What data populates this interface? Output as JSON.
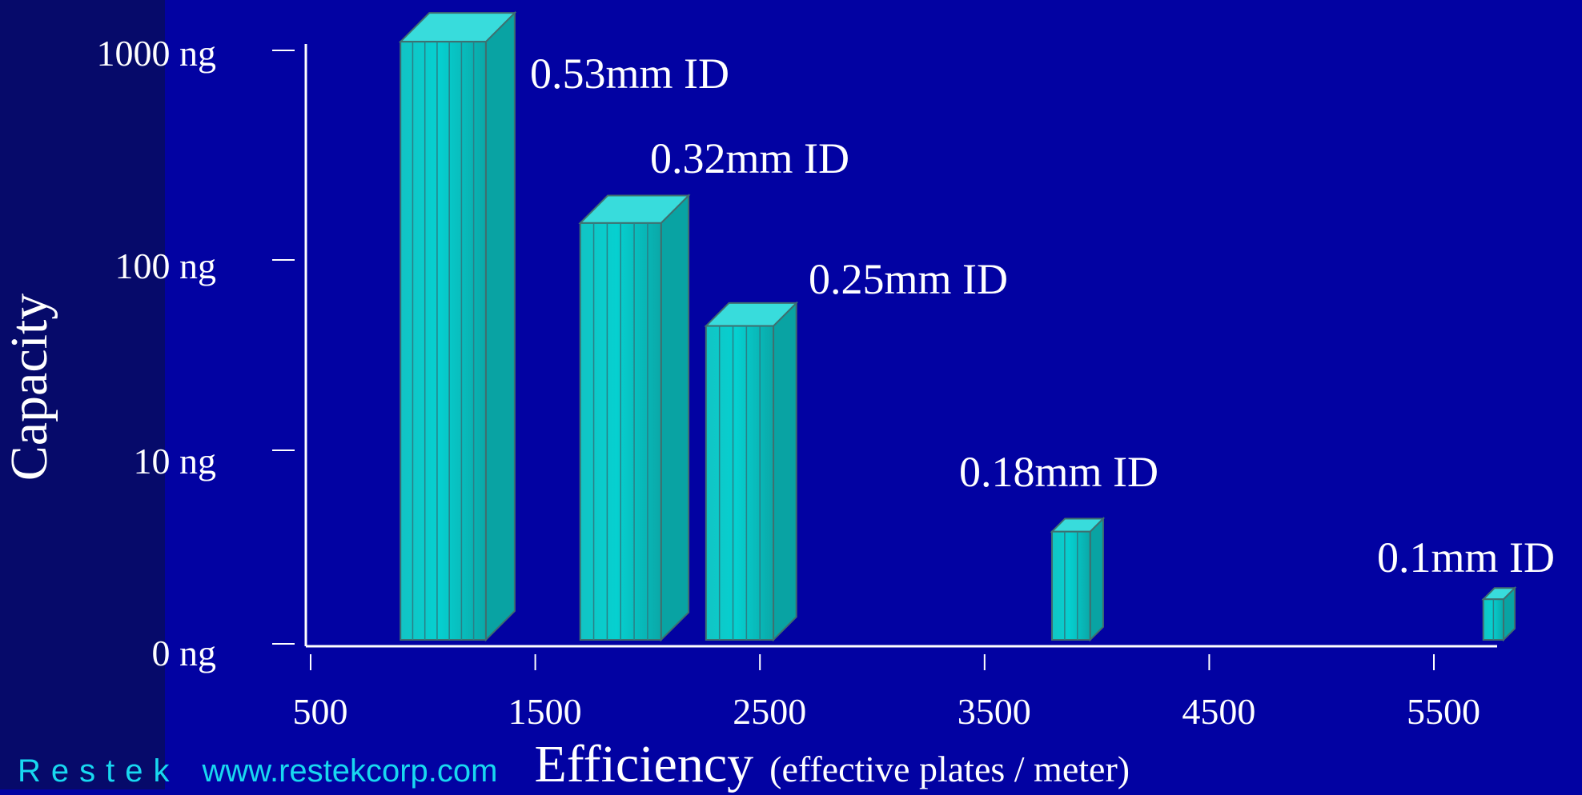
{
  "chart_data": {
    "type": "bar",
    "xlabel": "Efficiency",
    "xlabel_note": "(effective plates / meter)",
    "ylabel": "Capacity",
    "x_ticks": [
      500,
      1500,
      2500,
      3500,
      4500,
      5500
    ],
    "y_ticks": [
      "0 ng",
      "10 ng",
      "100 ng",
      "1000 ng"
    ],
    "y_scale": "log",
    "xlim": [
      500,
      5850
    ],
    "bar_style": "3d",
    "bar_color": "#10c6c6",
    "series": [
      {
        "label": "0.53mm ID",
        "x_range": [
          900,
          1280
        ],
        "capacity_ng": 1100
      },
      {
        "label": "0.32mm ID",
        "x_range": [
          1700,
          2060
        ],
        "capacity_ng": 150
      },
      {
        "label": "0.25mm ID",
        "x_range": [
          2260,
          2560
        ],
        "capacity_ng": 45
      },
      {
        "label": "0.18mm ID",
        "x_range": [
          3800,
          3970
        ],
        "capacity_ng": 3.8
      },
      {
        "label": "0.1mm ID",
        "x_range": [
          5720,
          5810
        ],
        "capacity_ng": 1.7
      }
    ]
  },
  "footer": {
    "brand": "Restek",
    "website": "www.restekcorp.com"
  }
}
